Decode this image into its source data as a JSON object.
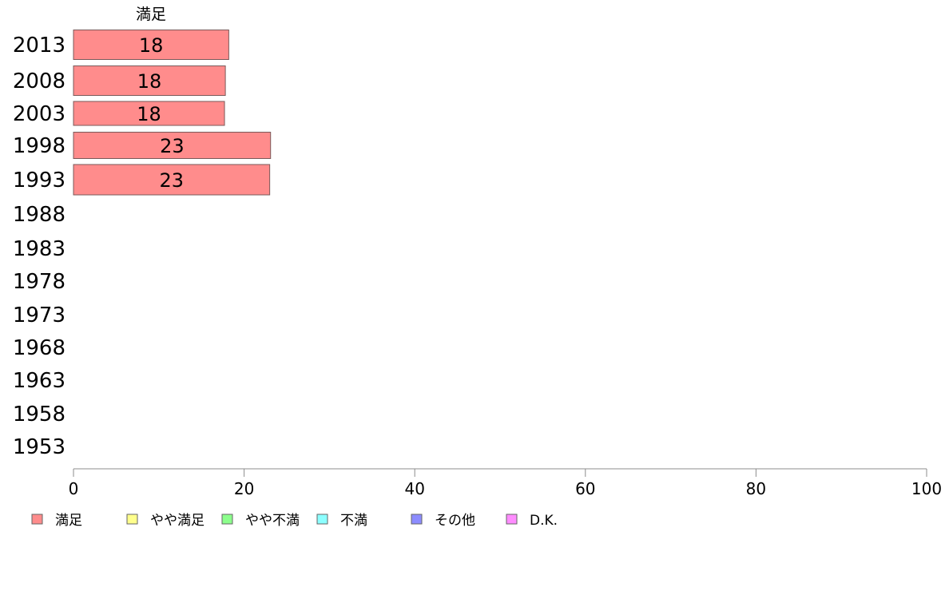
{
  "chart_data": {
    "type": "bar",
    "orientation": "horizontal",
    "stacked": true,
    "categories": [
      "2013",
      "2008",
      "2003",
      "1998",
      "1993",
      "1988",
      "1983",
      "1978",
      "1973",
      "1968",
      "1963",
      "1958",
      "1953"
    ],
    "series": [
      {
        "name": "満足",
        "color": "#ff8c8c",
        "values": [
          18.2,
          17.8,
          17.7,
          23.1,
          23.0,
          null,
          null,
          null,
          null,
          null,
          null,
          null,
          null
        ],
        "labels": [
          "18",
          "18",
          "18",
          "23",
          "23",
          "",
          "",
          "",
          "",
          "",
          "",
          "",
          ""
        ]
      },
      {
        "name": "やや満足",
        "color": "#ffff8c",
        "values": [
          null,
          null,
          null,
          null,
          null,
          null,
          null,
          null,
          null,
          null,
          null,
          null,
          null
        ],
        "labels": []
      },
      {
        "name": "やや不満",
        "color": "#8cff8c",
        "values": [
          null,
          null,
          null,
          null,
          null,
          null,
          null,
          null,
          null,
          null,
          null,
          null,
          null
        ],
        "labels": []
      },
      {
        "name": "不満",
        "color": "#8cffff",
        "values": [
          null,
          null,
          null,
          null,
          null,
          null,
          null,
          null,
          null,
          null,
          null,
          null,
          null
        ],
        "labels": []
      },
      {
        "name": "その他",
        "color": "#8c8cff",
        "values": [
          null,
          null,
          null,
          null,
          null,
          null,
          null,
          null,
          null,
          null,
          null,
          null,
          null
        ],
        "labels": []
      },
      {
        "name": "D.K.",
        "color": "#ff8cff",
        "values": [
          null,
          null,
          null,
          null,
          null,
          null,
          null,
          null,
          null,
          null,
          null,
          null,
          null
        ],
        "labels": []
      }
    ],
    "column_header": "満足",
    "xlim": [
      0,
      100
    ],
    "xticks": [
      "0",
      "20",
      "40",
      "60",
      "80",
      "100"
    ],
    "grid": false,
    "legend_placement": "bottom-left"
  }
}
